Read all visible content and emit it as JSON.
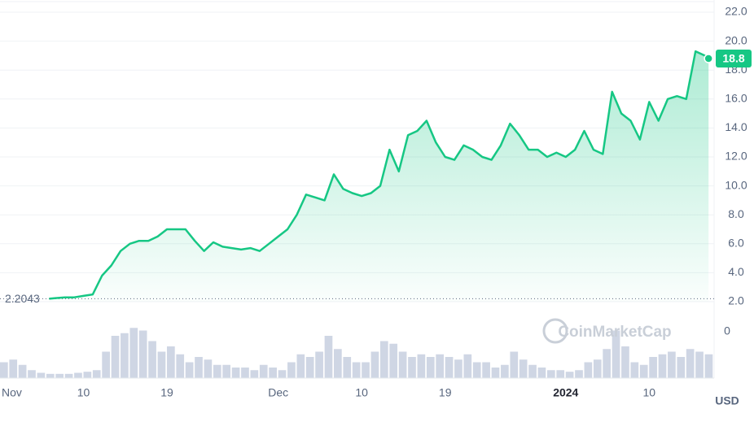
{
  "chart_data": {
    "type": "line",
    "xlim": [
      0,
      77
    ],
    "ylim": [
      2,
      22
    ],
    "grid": true,
    "xticks": [
      {
        "value": 0,
        "label": "Nov"
      },
      {
        "value": 9,
        "label": "10"
      },
      {
        "value": 18,
        "label": "19"
      },
      {
        "value": 30,
        "label": "Dec"
      },
      {
        "value": 39,
        "label": "10"
      },
      {
        "value": 48,
        "label": "19"
      },
      {
        "value": 61,
        "label": "2024"
      },
      {
        "value": 70,
        "label": "10"
      }
    ],
    "yticks": [
      {
        "value": 2,
        "label": "2.0"
      },
      {
        "value": 4,
        "label": "4.0"
      },
      {
        "value": 6,
        "label": "6.0"
      },
      {
        "value": 8,
        "label": "8.0"
      },
      {
        "value": 10,
        "label": "10.0"
      },
      {
        "value": 12,
        "label": "12.0"
      },
      {
        "value": 14,
        "label": "14.0"
      },
      {
        "value": 16,
        "label": "16.0"
      },
      {
        "value": 18,
        "label": "18.0"
      },
      {
        "value": 20,
        "label": "20.0"
      },
      {
        "value": 22,
        "label": "22.0"
      }
    ],
    "series": [
      {
        "color": "#16c784",
        "x": [
          5.3,
          6,
          7,
          8,
          9,
          10,
          11,
          12,
          13,
          14,
          15,
          16,
          17,
          18,
          19,
          20,
          21,
          22,
          23,
          24,
          25,
          26,
          27,
          28,
          29,
          30,
          31,
          32,
          33,
          34,
          35,
          36,
          37,
          38,
          39,
          40,
          41,
          42,
          43,
          44,
          45,
          46,
          47,
          48,
          49,
          50,
          51,
          52,
          53,
          54,
          55,
          56,
          57,
          58,
          59,
          60,
          61,
          62,
          63,
          64,
          65,
          66,
          67,
          68,
          69,
          70,
          71,
          72,
          73,
          74,
          75,
          76,
          76.4
        ],
        "values": [
          2.2,
          2.25,
          2.3,
          2.3,
          2.4,
          2.5,
          3.8,
          4.5,
          5.5,
          6.0,
          6.2,
          6.2,
          6.5,
          7.0,
          7.0,
          7.0,
          6.2,
          5.5,
          6.1,
          5.8,
          5.7,
          5.6,
          5.7,
          5.5,
          6.0,
          6.5,
          7.0,
          8.0,
          9.4,
          9.2,
          9.0,
          10.8,
          9.8,
          9.5,
          9.3,
          9.5,
          10.0,
          12.5,
          11.0,
          13.5,
          13.8,
          14.5,
          13.0,
          12.0,
          11.8,
          12.8,
          12.5,
          12.0,
          11.8,
          12.8,
          14.3,
          13.5,
          12.5,
          12.5,
          12.0,
          12.3,
          12.0,
          12.5,
          13.8,
          12.5,
          12.2,
          16.5,
          15.0,
          14.5,
          13.2,
          15.8,
          14.5,
          16.0,
          16.2,
          16.0,
          19.3,
          19.0,
          18.8
        ]
      }
    ],
    "volume": {
      "color": "#cfd6e4",
      "ylim": [
        0,
        100
      ],
      "yticks": [
        0
      ],
      "x": [
        0,
        1,
        2,
        3,
        4,
        5,
        6,
        7,
        8,
        9,
        10,
        11,
        12,
        13,
        14,
        15,
        16,
        17,
        18,
        19,
        20,
        21,
        22,
        23,
        24,
        25,
        26,
        27,
        28,
        29,
        30,
        31,
        32,
        33,
        34,
        35,
        36,
        37,
        38,
        39,
        40,
        41,
        42,
        43,
        44,
        45,
        46,
        47,
        48,
        49,
        50,
        51,
        52,
        53,
        54,
        55,
        56,
        57,
        58,
        59,
        60,
        61,
        62,
        63,
        64,
        65,
        66,
        67,
        68,
        69,
        70,
        71,
        72,
        73,
        74,
        75,
        76
      ],
      "values": [
        30,
        35,
        25,
        15,
        10,
        8,
        8,
        8,
        10,
        12,
        15,
        50,
        80,
        85,
        95,
        90,
        70,
        50,
        60,
        45,
        30,
        40,
        35,
        25,
        25,
        20,
        20,
        15,
        25,
        20,
        15,
        30,
        45,
        40,
        50,
        80,
        55,
        40,
        30,
        30,
        50,
        70,
        65,
        50,
        40,
        45,
        40,
        45,
        40,
        35,
        45,
        30,
        30,
        20,
        25,
        50,
        35,
        25,
        20,
        15,
        15,
        12,
        15,
        30,
        35,
        55,
        90,
        60,
        30,
        25,
        40,
        45,
        50,
        40,
        55,
        50,
        45
      ]
    },
    "reference_price": 2.2043,
    "current_price": 18.8,
    "currency": "USD",
    "watermark": "CoinMarketCap"
  }
}
